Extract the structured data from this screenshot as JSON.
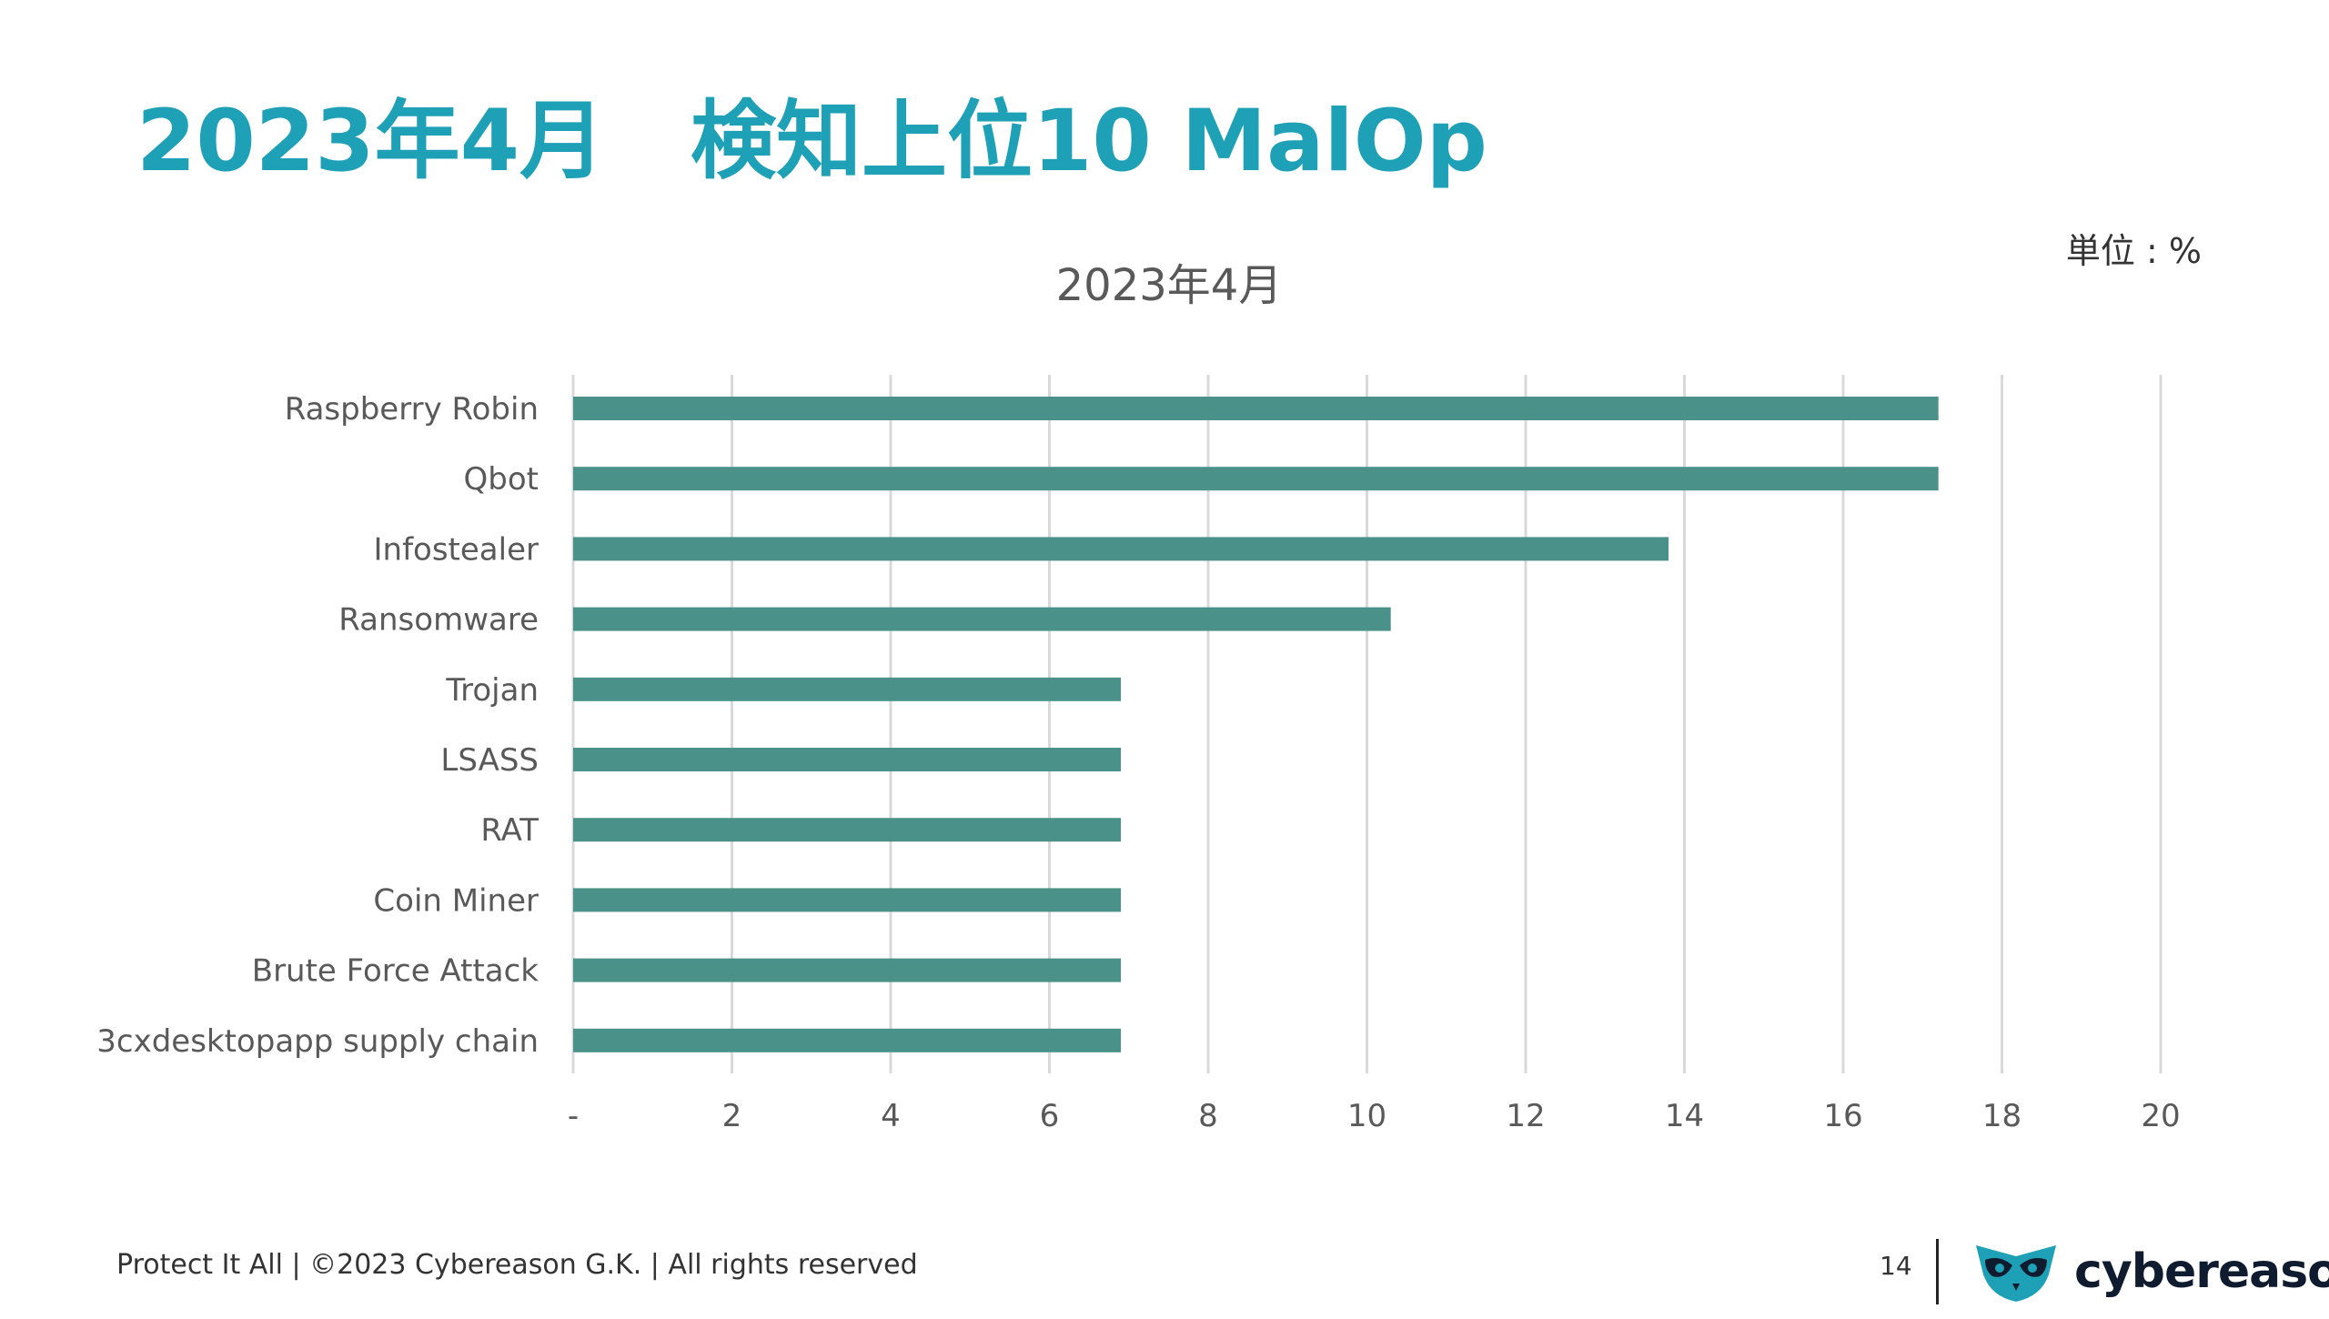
{
  "slide": {
    "title": "2023年4月　検知上位10 MalOp",
    "unit": "単位 : %"
  },
  "footer": {
    "text": "Protect It All | ©2023 Cybereason G.K. | All rights reserved",
    "page_number": "14",
    "logo_text": "cybereason",
    "logo_icon": "owl-logo-icon"
  },
  "colors": {
    "title": "#1ea0b6",
    "bar": "#4a918a",
    "grid": "#d9d9d9",
    "axis_text": "#595959",
    "logo_icon": "#1ea0b6"
  },
  "chart_data": {
    "type": "bar",
    "orientation": "horizontal",
    "title": "2023年4月",
    "categories": [
      "Raspberry Robin",
      "Qbot",
      "Infostealer",
      "Ransomware",
      "Trojan",
      "LSASS",
      "RAT",
      "Coin Miner",
      "Brute Force Attack",
      "3cxdesktopapp supply chain"
    ],
    "values": [
      17.2,
      17.2,
      13.8,
      10.3,
      6.9,
      6.9,
      6.9,
      6.9,
      6.9,
      6.9
    ],
    "xlim": [
      0,
      20
    ],
    "xticks": [
      0,
      2,
      4,
      6,
      8,
      10,
      12,
      14,
      16,
      18,
      20
    ],
    "xtick_labels": [
      "-",
      "2",
      "4",
      "6",
      "8",
      "10",
      "12",
      "14",
      "16",
      "18",
      "20"
    ],
    "grid": true,
    "legend": "none"
  }
}
